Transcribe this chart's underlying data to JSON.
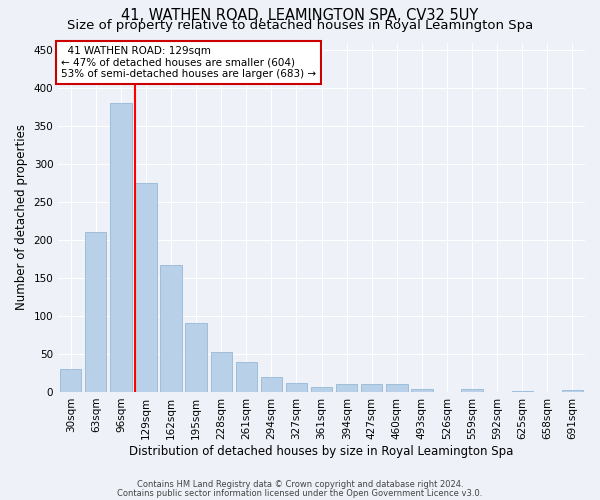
{
  "title": "41, WATHEN ROAD, LEAMINGTON SPA, CV32 5UY",
  "subtitle": "Size of property relative to detached houses in Royal Leamington Spa",
  "xlabel": "Distribution of detached houses by size in Royal Leamington Spa",
  "ylabel": "Number of detached properties",
  "footnote1": "Contains HM Land Registry data © Crown copyright and database right 2024.",
  "footnote2": "Contains public sector information licensed under the Open Government Licence v3.0.",
  "bar_labels": [
    "30sqm",
    "63sqm",
    "96sqm",
    "129sqm",
    "162sqm",
    "195sqm",
    "228sqm",
    "261sqm",
    "294sqm",
    "327sqm",
    "361sqm",
    "394sqm",
    "427sqm",
    "460sqm",
    "493sqm",
    "526sqm",
    "559sqm",
    "592sqm",
    "625sqm",
    "658sqm",
    "691sqm"
  ],
  "bar_values": [
    30,
    210,
    380,
    275,
    167,
    91,
    52,
    39,
    20,
    12,
    6,
    11,
    11,
    10,
    4,
    0,
    4,
    0,
    1,
    0,
    2
  ],
  "bar_color": "#b8d0e8",
  "bar_edgecolor": "#8ab0d0",
  "highlight_index": 3,
  "annotation_text": "  41 WATHEN ROAD: 129sqm\n← 47% of detached houses are smaller (604)\n53% of semi-detached houses are larger (683) →",
  "annotation_box_color": "#ffffff",
  "annotation_box_edge": "#cc0000",
  "ylim": [
    0,
    460
  ],
  "background_color": "#eef2f8",
  "grid_color": "#ffffff",
  "title_fontsize": 10.5,
  "subtitle_fontsize": 9.5,
  "xlabel_fontsize": 8.5,
  "ylabel_fontsize": 8.5,
  "tick_fontsize": 7.5,
  "annot_fontsize": 7.5,
  "footnote_fontsize": 6.0
}
